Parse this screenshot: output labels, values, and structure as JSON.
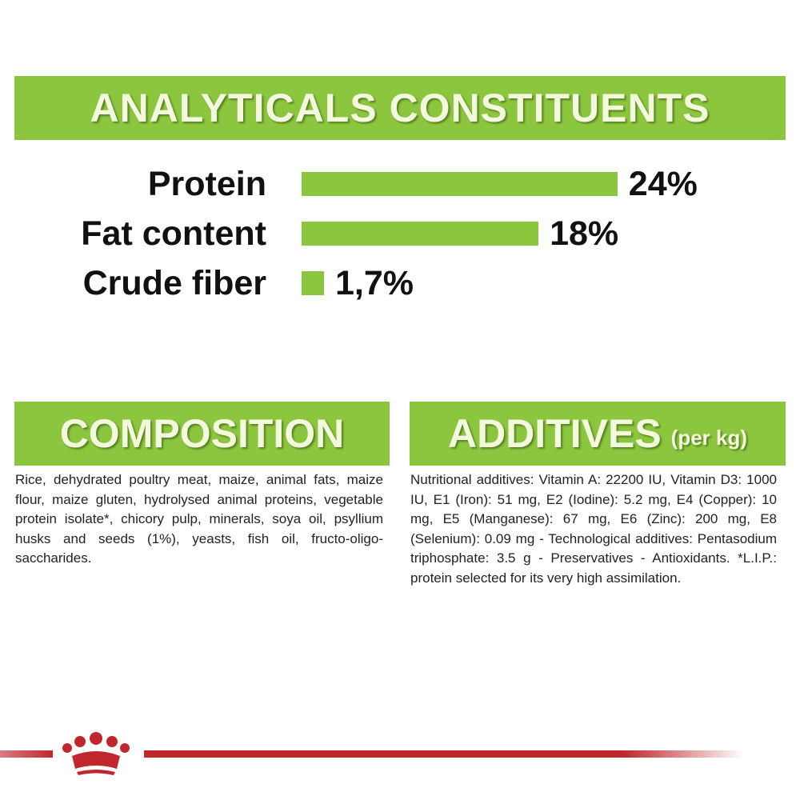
{
  "header": {
    "title": "ANALYTICALS CONSTITUENTS"
  },
  "nutrients": [
    {
      "label": "Protein",
      "value": 24,
      "value_label": "24%"
    },
    {
      "label": "Fat content",
      "value": 18,
      "value_label": "18%"
    },
    {
      "label": "Crude fiber",
      "value": 1.7,
      "value_label": "1,7%"
    }
  ],
  "composition": {
    "title": "COMPOSITION",
    "text": "Rice, dehydrated poultry meat, maize, animal fats, maize flour, maize gluten, hydrolysed animal proteins, vegetable protein isolate*, chicory pulp, minerals, soya oil, psyllium husks and seeds (1%), yeasts, fish oil, fructo-oligo- saccharides."
  },
  "additives": {
    "title": "ADDITIVES",
    "subtitle": "(per kg)",
    "text": "Nutritional additives: Vitamin A: 22200 IU, Vitamin D3: 1000 IU, E1 (Iron): 51 mg, E2 (Iodine): 5.2 mg, E4 (Copper): 10 mg, E5 (Manganese): 67 mg, E6 (Zinc): 200 mg, E8 (Selenium): 0.09 mg - Technological additives: Pentasodium triphosphate: 3.5 g - Preservatives - Antioxidants. *L.I.P.: protein selected for its very high assimilation."
  }
}
